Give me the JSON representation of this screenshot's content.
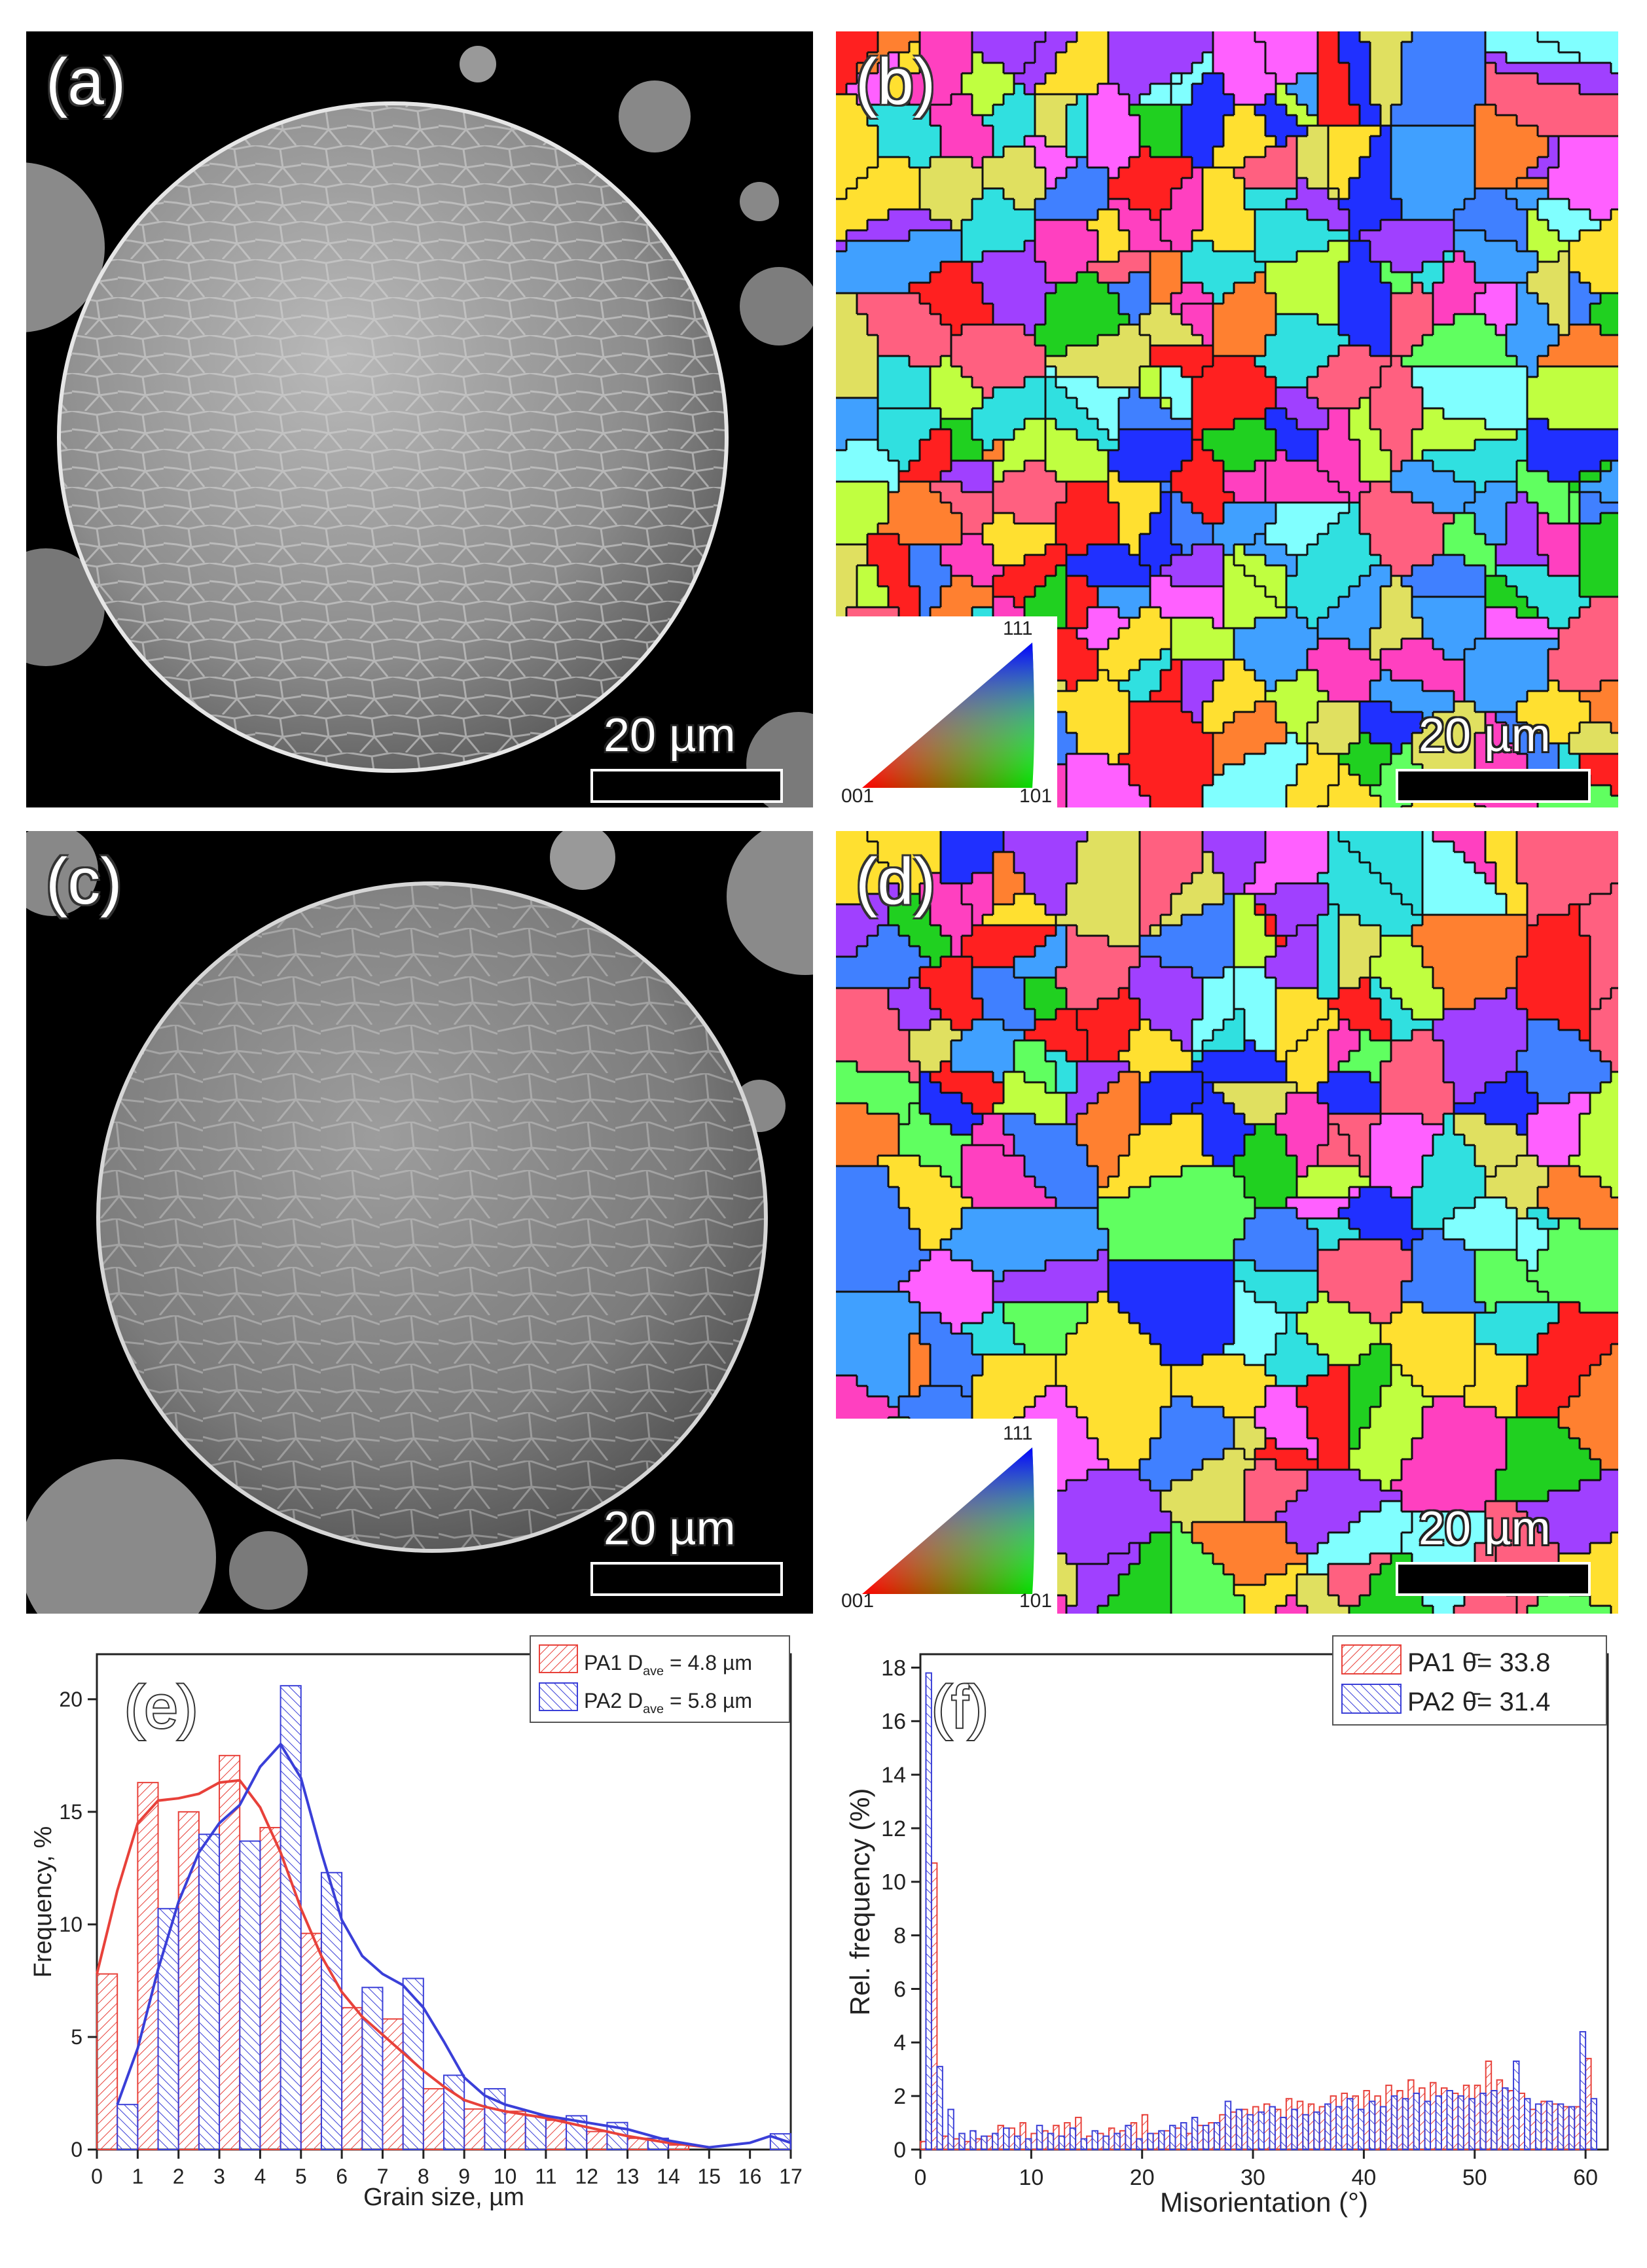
{
  "panels": {
    "a": {
      "label": "(a)",
      "scale": "20 µm"
    },
    "b": {
      "label": "(b)",
      "scale": "20 µm"
    },
    "c": {
      "label": "(c)",
      "scale": "20 µm"
    },
    "d": {
      "label": "(d)",
      "scale": "20 µm"
    }
  },
  "ipf_key": {
    "top": "111",
    "left": "001",
    "right": "101"
  },
  "chart_data": [
    {
      "panel": "(e)",
      "type": "bar",
      "xlabel": "Grain size, µm",
      "ylabel": "Frequency, %",
      "xlim": [
        0,
        17
      ],
      "ylim": [
        0,
        22
      ],
      "xticks": [
        0,
        1,
        2,
        3,
        4,
        5,
        6,
        7,
        8,
        9,
        10,
        11,
        12,
        13,
        14,
        15,
        16,
        17
      ],
      "yticks": [
        0,
        5,
        10,
        15,
        20
      ],
      "bin_width": 0.5,
      "legend_position": "top-right",
      "series": [
        {
          "name": "PA1",
          "legend_label": "PA1 D",
          "legend_sub": "ave",
          "legend_value": " = 4.8 µm",
          "color": "#e8413a",
          "bin_starts": [
            0,
            1,
            2,
            3,
            4,
            5,
            6,
            7,
            8,
            9,
            10,
            11,
            12,
            13,
            14
          ],
          "values": [
            7.8,
            16.3,
            15.0,
            17.5,
            14.3,
            9.6,
            6.3,
            5.8,
            2.7,
            1.8,
            1.7,
            1.3,
            0.8,
            0.5,
            0.2
          ]
        },
        {
          "name": "PA2",
          "legend_label": "PA2 D",
          "legend_sub": "ave",
          "legend_value": " = 5.8 µm",
          "color": "#3a3fd8",
          "bin_starts": [
            0.5,
            1.5,
            2.5,
            3.5,
            4.5,
            5.5,
            6.5,
            7.5,
            8.5,
            9.5,
            10.5,
            11.5,
            12.5,
            13.5,
            16.5
          ],
          "values": [
            2.0,
            10.7,
            14.0,
            13.7,
            20.6,
            12.3,
            7.2,
            7.6,
            3.3,
            2.7,
            1.5,
            1.5,
            1.2,
            0.5,
            0.7
          ]
        }
      ],
      "fits": [
        {
          "name": "PA1",
          "x": [
            0,
            0.5,
            1,
            1.5,
            2,
            2.5,
            3,
            3.5,
            4,
            4.5,
            5,
            5.5,
            6,
            6.5,
            7,
            7.5,
            8,
            8.5,
            9,
            9.5,
            10,
            11,
            12,
            13,
            14,
            15
          ],
          "y": [
            7.8,
            11.5,
            14.5,
            15.5,
            15.6,
            15.8,
            16.3,
            16.4,
            15.2,
            13.2,
            10.7,
            8.6,
            7.0,
            5.9,
            5.1,
            4.3,
            3.5,
            2.8,
            2.2,
            1.9,
            1.7,
            1.4,
            1.0,
            0.6,
            0.3,
            0.1
          ]
        },
        {
          "name": "PA2",
          "x": [
            0.5,
            1,
            1.5,
            2,
            2.5,
            3,
            3.5,
            4,
            4.5,
            5,
            5.5,
            6,
            6.5,
            7,
            7.5,
            8,
            8.5,
            9,
            9.5,
            10,
            11,
            12,
            13,
            14,
            15,
            16,
            16.5,
            17
          ],
          "y": [
            2.0,
            4.5,
            8.0,
            11.0,
            13.2,
            14.5,
            15.3,
            17.0,
            18.0,
            16.5,
            13.2,
            10.2,
            8.6,
            7.8,
            7.3,
            6.3,
            4.8,
            3.2,
            2.4,
            2.0,
            1.5,
            1.2,
            0.9,
            0.4,
            0.1,
            0.3,
            0.6,
            0.3
          ]
        }
      ]
    },
    {
      "panel": "(f)",
      "type": "bar",
      "xlabel": "Misorientation (°)",
      "ylabel": "Rel. frequency (%)",
      "xlim": [
        0,
        62
      ],
      "ylim": [
        0,
        18.5
      ],
      "xticks": [
        0,
        10,
        20,
        30,
        40,
        50,
        60
      ],
      "yticks": [
        0,
        2,
        4,
        6,
        8,
        10,
        12,
        14,
        16,
        18
      ],
      "bin_width": 0.5,
      "legend_position": "top-right",
      "series": [
        {
          "name": "PA1",
          "legend_label": "PA1 ",
          "legend_symbol": "θ̄",
          "legend_value": "= 33.8",
          "color": "#e8413a",
          "bin_starts": [
            0,
            1,
            2,
            3,
            4,
            5,
            6,
            7,
            8,
            9,
            10,
            11,
            12,
            13,
            14,
            15,
            16,
            17,
            18,
            19,
            20,
            21,
            22,
            23,
            24,
            25,
            26,
            27,
            28,
            29,
            30,
            31,
            32,
            33,
            34,
            35,
            36,
            37,
            38,
            39,
            40,
            41,
            42,
            43,
            44,
            45,
            46,
            47,
            48,
            49,
            50,
            51,
            52,
            53,
            54,
            55,
            56,
            57,
            58,
            59,
            60
          ],
          "values": [
            0.3,
            10.7,
            0.5,
            0.4,
            0.3,
            0.4,
            0.5,
            0.9,
            0.8,
            1.0,
            0.6,
            0.7,
            0.9,
            1.0,
            1.2,
            0.5,
            0.6,
            0.8,
            0.7,
            1.0,
            1.3,
            0.6,
            0.7,
            0.8,
            0.6,
            0.9,
            1.0,
            1.3,
            1.4,
            1.5,
            1.6,
            1.7,
            1.5,
            1.9,
            1.8,
            1.7,
            1.6,
            2.0,
            2.1,
            2.0,
            2.2,
            2.0,
            2.4,
            2.2,
            2.6,
            2.3,
            2.5,
            2.3,
            2.1,
            2.4,
            2.4,
            3.3,
            2.6,
            2.2,
            2.1,
            1.5,
            1.8,
            1.7,
            1.6,
            1.6,
            3.4
          ]
        },
        {
          "name": "PA2",
          "legend_label": "PA2 ",
          "legend_symbol": "θ̄",
          "legend_value": "= 31.4",
          "color": "#3a3fd8",
          "bin_starts": [
            0.5,
            1.5,
            2.5,
            3.5,
            4.5,
            5.5,
            6.5,
            7.5,
            8.5,
            9.5,
            10.5,
            11.5,
            12.5,
            13.5,
            14.5,
            15.5,
            16.5,
            17.5,
            18.5,
            19.5,
            20.5,
            21.5,
            22.5,
            23.5,
            24.5,
            25.5,
            26.5,
            27.5,
            28.5,
            29.5,
            30.5,
            31.5,
            32.5,
            33.5,
            34.5,
            35.5,
            36.5,
            37.5,
            38.5,
            39.5,
            40.5,
            41.5,
            42.5,
            43.5,
            44.5,
            45.5,
            46.5,
            47.5,
            48.5,
            49.5,
            50.5,
            51.5,
            52.5,
            53.5,
            54.5,
            55.5,
            56.5,
            57.5,
            58.5,
            59.5,
            60.5
          ],
          "values": [
            17.8,
            3.1,
            1.5,
            0.6,
            0.7,
            0.5,
            0.6,
            0.8,
            0.5,
            0.4,
            0.9,
            0.6,
            0.5,
            0.8,
            0.4,
            0.7,
            0.5,
            0.6,
            0.9,
            0.4,
            0.6,
            0.7,
            0.9,
            1.0,
            1.2,
            0.9,
            1.0,
            1.8,
            1.5,
            1.3,
            1.4,
            1.6,
            1.2,
            1.5,
            1.3,
            1.4,
            1.7,
            1.6,
            1.9,
            1.5,
            1.8,
            1.6,
            2.0,
            1.9,
            2.1,
            1.8,
            2.0,
            2.2,
            2.0,
            1.9,
            2.1,
            2.2,
            2.3,
            3.3,
            1.9,
            1.7,
            1.8,
            1.7,
            1.6,
            4.4,
            1.9
          ]
        }
      ]
    }
  ]
}
